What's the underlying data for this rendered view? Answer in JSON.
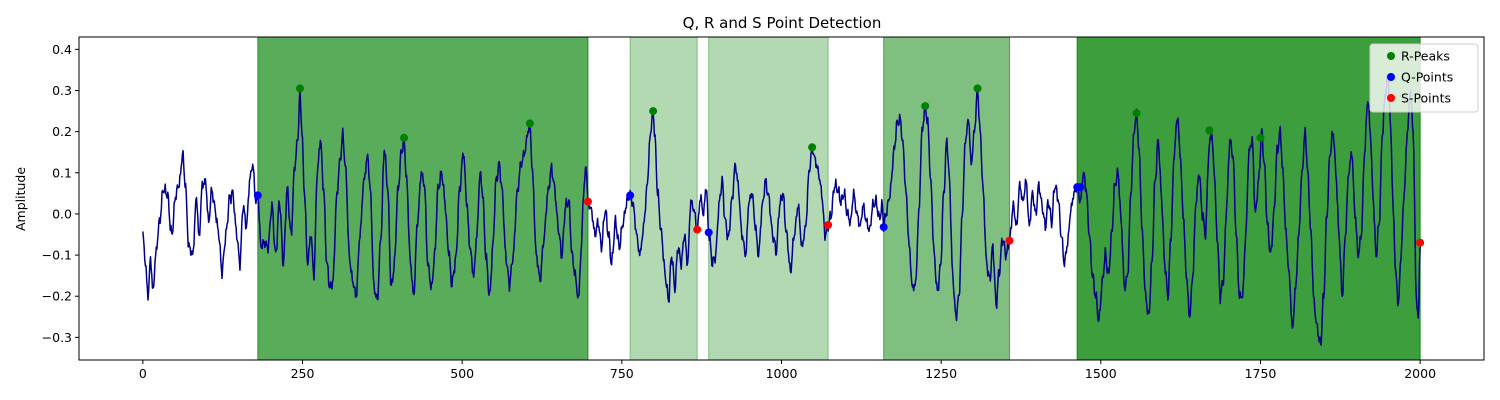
{
  "chart_data": {
    "type": "line",
    "title": "Q, R and S Point Detection",
    "xlabel": "",
    "ylabel": "Amplitude",
    "xlim": [
      -100,
      2100
    ],
    "ylim": [
      -0.355,
      0.43
    ],
    "x_ticks": [
      0,
      250,
      500,
      750,
      1000,
      1250,
      1500,
      1750,
      2000
    ],
    "y_ticks": [
      -0.3,
      -0.2,
      -0.1,
      0.0,
      0.1,
      0.2,
      0.3,
      0.4
    ],
    "y_tick_labels": [
      "−0.3",
      "−0.2",
      "−0.1",
      "0.0",
      "0.1",
      "0.2",
      "0.3",
      "0.4"
    ],
    "grid": false,
    "legend_position": "top-right",
    "colors": {
      "signal": "#00008b",
      "r_peaks": "#008000",
      "q_points": "#0000ff",
      "s_points": "#ff0000",
      "region": "#008000"
    },
    "regions": [
      {
        "start": 180,
        "end": 697,
        "alpha": 0.65
      },
      {
        "start": 763,
        "end": 868,
        "alpha": 0.3
      },
      {
        "start": 886,
        "end": 1073,
        "alpha": 0.3
      },
      {
        "start": 1160,
        "end": 1357,
        "alpha": 0.5
      },
      {
        "start": 1463,
        "end": 2000,
        "alpha": 0.76
      }
    ],
    "signal_envelope": [
      [
        0,
        -0.05
      ],
      [
        4,
        -0.12
      ],
      [
        8,
        -0.2
      ],
      [
        12,
        -0.11
      ],
      [
        16,
        -0.19
      ],
      [
        20,
        -0.1
      ],
      [
        26,
        -0.02
      ],
      [
        32,
        0.06
      ],
      [
        38,
        0.05
      ],
      [
        45,
        -0.05
      ],
      [
        52,
        0.05
      ],
      [
        58,
        0.08
      ],
      [
        62,
        0.15
      ],
      [
        66,
        0.08
      ],
      [
        72,
        -0.08
      ],
      [
        78,
        -0.1
      ],
      [
        84,
        0.04
      ],
      [
        88,
        -0.06
      ],
      [
        93,
        0.07
      ],
      [
        98,
        0.08
      ],
      [
        103,
        -0.02
      ],
      [
        108,
        0.06
      ],
      [
        112,
        0.02
      ],
      [
        118,
        -0.04
      ],
      [
        124,
        -0.14
      ],
      [
        130,
        -0.05
      ],
      [
        136,
        0.04
      ],
      [
        141,
        0.05
      ],
      [
        146,
        -0.04
      ],
      [
        152,
        -0.12
      ],
      [
        157,
        0.02
      ],
      [
        162,
        -0.03
      ],
      [
        168,
        0.09
      ],
      [
        172,
        0.12
      ],
      [
        177,
        0.03
      ],
      [
        180,
        0.045
      ],
      [
        185,
        -0.08
      ],
      [
        190,
        -0.07
      ],
      [
        196,
        -0.08
      ],
      [
        202,
        0.02
      ],
      [
        208,
        -0.1
      ],
      [
        214,
        0.03
      ],
      [
        220,
        -0.12
      ],
      [
        226,
        0.06
      ],
      [
        232,
        -0.05
      ],
      [
        238,
        0.12
      ],
      [
        243,
        0.19
      ],
      [
        246,
        0.3
      ],
      [
        249,
        0.2
      ],
      [
        253,
        0.05
      ],
      [
        258,
        -0.12
      ],
      [
        263,
        -0.05
      ],
      [
        268,
        -0.15
      ],
      [
        273,
        0.1
      ],
      [
        278,
        0.18
      ],
      [
        283,
        0.06
      ],
      [
        288,
        -0.12
      ],
      [
        293,
        -0.18
      ],
      [
        298,
        -0.16
      ],
      [
        303,
        0.03
      ],
      [
        308,
        0.12
      ],
      [
        313,
        0.19
      ],
      [
        318,
        0.1
      ],
      [
        323,
        -0.1
      ],
      [
        328,
        -0.16
      ],
      [
        334,
        -0.2
      ],
      [
        340,
        -0.05
      ],
      [
        346,
        0.08
      ],
      [
        352,
        0.14
      ],
      [
        356,
        0.06
      ],
      [
        362,
        -0.18
      ],
      [
        367,
        -0.21
      ],
      [
        373,
        -0.05
      ],
      [
        378,
        0.16
      ],
      [
        383,
        0.07
      ],
      [
        389,
        -0.18
      ],
      [
        394,
        -0.12
      ],
      [
        399,
        0.05
      ],
      [
        405,
        0.15
      ],
      [
        409,
        0.18
      ],
      [
        413,
        0.08
      ],
      [
        419,
        -0.12
      ],
      [
        424,
        -0.2
      ],
      [
        430,
        -0.02
      ],
      [
        436,
        0.1
      ],
      [
        441,
        0.07
      ],
      [
        446,
        -0.12
      ],
      [
        452,
        -0.18
      ],
      [
        457,
        -0.1
      ],
      [
        462,
        0.06
      ],
      [
        468,
        0.1
      ],
      [
        473,
        0.03
      ],
      [
        478,
        -0.08
      ],
      [
        484,
        -0.17
      ],
      [
        490,
        -0.11
      ],
      [
        496,
        0.06
      ],
      [
        502,
        0.15
      ],
      [
        507,
        0.03
      ],
      [
        512,
        -0.08
      ],
      [
        518,
        -0.15
      ],
      [
        523,
        -0.05
      ],
      [
        528,
        0.1
      ],
      [
        532,
        0.05
      ],
      [
        537,
        -0.1
      ],
      [
        543,
        -0.2
      ],
      [
        548,
        -0.08
      ],
      [
        553,
        0.08
      ],
      [
        558,
        0.12
      ],
      [
        563,
        0.05
      ],
      [
        568,
        -0.1
      ],
      [
        574,
        -0.17
      ],
      [
        580,
        -0.1
      ],
      [
        586,
        0.05
      ],
      [
        592,
        0.12
      ],
      [
        598,
        0.15
      ],
      [
        603,
        0.2
      ],
      [
        606,
        0.22
      ],
      [
        610,
        0.1
      ],
      [
        616,
        -0.1
      ],
      [
        622,
        -0.16
      ],
      [
        628,
        -0.06
      ],
      [
        634,
        0.05
      ],
      [
        640,
        0.11
      ],
      [
        645,
        0.06
      ],
      [
        650,
        -0.03
      ],
      [
        656,
        -0.1
      ],
      [
        662,
        0.02
      ],
      [
        667,
        0.03
      ],
      [
        672,
        -0.1
      ],
      [
        677,
        -0.15
      ],
      [
        682,
        -0.21
      ],
      [
        686,
        -0.1
      ],
      [
        690,
        0.05
      ],
      [
        694,
        0.12
      ],
      [
        697,
        0.03
      ],
      [
        702,
        0.01
      ],
      [
        708,
        -0.05
      ],
      [
        713,
        -0.02
      ],
      [
        718,
        -0.08
      ],
      [
        724,
        0.01
      ],
      [
        729,
        -0.05
      ],
      [
        734,
        -0.12
      ],
      [
        740,
        -0.02
      ],
      [
        746,
        -0.08
      ],
      [
        752,
        -0.02
      ],
      [
        758,
        0.03
      ],
      [
        763,
        0.045
      ],
      [
        768,
        0.02
      ],
      [
        773,
        -0.05
      ],
      [
        778,
        -0.1
      ],
      [
        782,
        -0.06
      ],
      [
        786,
        0.0
      ],
      [
        790,
        0.08
      ],
      [
        795,
        0.2
      ],
      [
        799,
        0.25
      ],
      [
        802,
        0.18
      ],
      [
        806,
        0.05
      ],
      [
        812,
        -0.05
      ],
      [
        818,
        -0.15
      ],
      [
        823,
        -0.21
      ],
      [
        828,
        -0.1
      ],
      [
        833,
        -0.18
      ],
      [
        838,
        -0.08
      ],
      [
        843,
        -0.12
      ],
      [
        848,
        -0.05
      ],
      [
        853,
        -0.12
      ],
      [
        858,
        0.03
      ],
      [
        863,
        0.01
      ],
      [
        868,
        -0.04
      ],
      [
        873,
        0.04
      ],
      [
        878,
        0.0
      ],
      [
        882,
        0.07
      ],
      [
        886,
        -0.045
      ],
      [
        892,
        -0.12
      ],
      [
        897,
        -0.1
      ],
      [
        902,
        0.02
      ],
      [
        907,
        0.08
      ],
      [
        912,
        -0.02
      ],
      [
        917,
        -0.06
      ],
      [
        922,
        0.03
      ],
      [
        928,
        0.12
      ],
      [
        932,
        0.07
      ],
      [
        938,
        -0.05
      ],
      [
        944,
        -0.1
      ],
      [
        949,
        0.03
      ],
      [
        954,
        0.05
      ],
      [
        959,
        -0.03
      ],
      [
        964,
        -0.1
      ],
      [
        970,
        0.02
      ],
      [
        975,
        0.08
      ],
      [
        980,
        0.04
      ],
      [
        986,
        -0.05
      ],
      [
        992,
        -0.09
      ],
      [
        997,
        0.02
      ],
      [
        1002,
        0.05
      ],
      [
        1008,
        -0.05
      ],
      [
        1014,
        -0.14
      ],
      [
        1020,
        -0.05
      ],
      [
        1026,
        0.02
      ],
      [
        1032,
        -0.08
      ],
      [
        1038,
        -0.03
      ],
      [
        1043,
        0.1
      ],
      [
        1048,
        0.16
      ],
      [
        1053,
        0.13
      ],
      [
        1058,
        0.1
      ],
      [
        1063,
        0.05
      ],
      [
        1068,
        -0.05
      ],
      [
        1073,
        -0.03
      ],
      [
        1078,
        0.0
      ],
      [
        1083,
        0.07
      ],
      [
        1088,
        0.06
      ],
      [
        1093,
        0.03
      ],
      [
        1098,
        0.05
      ],
      [
        1103,
        0.0
      ],
      [
        1108,
        -0.02
      ],
      [
        1113,
        0.05
      ],
      [
        1118,
        0.0
      ],
      [
        1123,
        -0.03
      ],
      [
        1128,
        0.02
      ],
      [
        1133,
        -0.02
      ],
      [
        1138,
        -0.04
      ],
      [
        1143,
        0.02
      ],
      [
        1148,
        0.03
      ],
      [
        1153,
        -0.01
      ],
      [
        1158,
        0.02
      ],
      [
        1160,
        -0.03
      ],
      [
        1165,
        0.01
      ],
      [
        1170,
        0.05
      ],
      [
        1176,
        0.15
      ],
      [
        1181,
        0.22
      ],
      [
        1186,
        0.23
      ],
      [
        1190,
        0.17
      ],
      [
        1195,
        0.05
      ],
      [
        1200,
        -0.08
      ],
      [
        1205,
        -0.18
      ],
      [
        1210,
        -0.17
      ],
      [
        1215,
        0.0
      ],
      [
        1220,
        0.2
      ],
      [
        1225,
        0.26
      ],
      [
        1229,
        0.22
      ],
      [
        1234,
        0.07
      ],
      [
        1239,
        -0.1
      ],
      [
        1244,
        -0.19
      ],
      [
        1249,
        -0.13
      ],
      [
        1254,
        0.05
      ],
      [
        1259,
        0.18
      ],
      [
        1263,
        0.08
      ],
      [
        1268,
        -0.15
      ],
      [
        1273,
        -0.25
      ],
      [
        1278,
        -0.2
      ],
      [
        1283,
        0.0
      ],
      [
        1288,
        0.18
      ],
      [
        1293,
        0.23
      ],
      [
        1297,
        0.12
      ],
      [
        1302,
        0.2
      ],
      [
        1307,
        0.3
      ],
      [
        1311,
        0.2
      ],
      [
        1316,
        0.05
      ],
      [
        1321,
        -0.12
      ],
      [
        1326,
        -0.16
      ],
      [
        1331,
        -0.08
      ],
      [
        1336,
        -0.22
      ],
      [
        1341,
        -0.14
      ],
      [
        1346,
        -0.06
      ],
      [
        1352,
        -0.1
      ],
      [
        1357,
        -0.065
      ],
      [
        1363,
        0.02
      ],
      [
        1368,
        -0.03
      ],
      [
        1373,
        0.07
      ],
      [
        1378,
        0.03
      ],
      [
        1383,
        0.08
      ],
      [
        1388,
        -0.03
      ],
      [
        1393,
        0.05
      ],
      [
        1398,
        0.0
      ],
      [
        1403,
        0.07
      ],
      [
        1408,
        0.02
      ],
      [
        1413,
        -0.03
      ],
      [
        1418,
        0.03
      ],
      [
        1423,
        -0.02
      ],
      [
        1428,
        0.07
      ],
      [
        1433,
        0.04
      ],
      [
        1438,
        -0.05
      ],
      [
        1443,
        -0.12
      ],
      [
        1448,
        -0.07
      ],
      [
        1453,
        0.01
      ],
      [
        1458,
        0.05
      ],
      [
        1463,
        0.065
      ],
      [
        1468,
        0.03
      ],
      [
        1473,
        0.1
      ],
      [
        1477,
        0.06
      ],
      [
        1482,
        -0.05
      ],
      [
        1487,
        -0.15
      ],
      [
        1492,
        -0.2
      ],
      [
        1497,
        -0.26
      ],
      [
        1502,
        -0.17
      ],
      [
        1507,
        -0.1
      ],
      [
        1512,
        -0.15
      ],
      [
        1517,
        -0.05
      ],
      [
        1522,
        0.07
      ],
      [
        1527,
        0.1
      ],
      [
        1532,
        -0.02
      ],
      [
        1537,
        -0.18
      ],
      [
        1542,
        -0.15
      ],
      [
        1547,
        0.05
      ],
      [
        1552,
        0.2
      ],
      [
        1556,
        0.245
      ],
      [
        1560,
        0.15
      ],
      [
        1565,
        -0.05
      ],
      [
        1570,
        -0.2
      ],
      [
        1575,
        -0.25
      ],
      [
        1580,
        -0.12
      ],
      [
        1585,
        0.08
      ],
      [
        1590,
        0.18
      ],
      [
        1595,
        0.04
      ],
      [
        1600,
        -0.12
      ],
      [
        1605,
        -0.2
      ],
      [
        1610,
        -0.05
      ],
      [
        1615,
        0.15
      ],
      [
        1620,
        0.24
      ],
      [
        1624,
        0.15
      ],
      [
        1629,
        0.0
      ],
      [
        1634,
        -0.15
      ],
      [
        1639,
        -0.25
      ],
      [
        1644,
        -0.15
      ],
      [
        1649,
        0.03
      ],
      [
        1654,
        0.1
      ],
      [
        1659,
        0.0
      ],
      [
        1664,
        -0.05
      ],
      [
        1669,
        0.15
      ],
      [
        1673,
        0.2
      ],
      [
        1677,
        0.12
      ],
      [
        1682,
        -0.05
      ],
      [
        1687,
        -0.2
      ],
      [
        1692,
        -0.16
      ],
      [
        1697,
        0.02
      ],
      [
        1702,
        0.18
      ],
      [
        1707,
        0.14
      ],
      [
        1712,
        -0.05
      ],
      [
        1717,
        -0.2
      ],
      [
        1722,
        -0.2
      ],
      [
        1727,
        -0.05
      ],
      [
        1732,
        0.15
      ],
      [
        1737,
        0.18
      ],
      [
        1742,
        0.0
      ],
      [
        1747,
        0.08
      ],
      [
        1752,
        0.2
      ],
      [
        1756,
        0.12
      ],
      [
        1761,
        -0.03
      ],
      [
        1766,
        -0.1
      ],
      [
        1771,
        0.0
      ],
      [
        1776,
        0.15
      ],
      [
        1781,
        0.2
      ],
      [
        1785,
        0.1
      ],
      [
        1790,
        -0.05
      ],
      [
        1795,
        -0.15
      ],
      [
        1800,
        -0.28
      ],
      [
        1805,
        -0.18
      ],
      [
        1810,
        -0.05
      ],
      [
        1815,
        0.1
      ],
      [
        1820,
        0.2
      ],
      [
        1824,
        0.1
      ],
      [
        1829,
        -0.05
      ],
      [
        1834,
        -0.22
      ],
      [
        1839,
        -0.28
      ],
      [
        1844,
        -0.32
      ],
      [
        1849,
        -0.2
      ],
      [
        1854,
        0.0
      ],
      [
        1859,
        0.15
      ],
      [
        1864,
        0.2
      ],
      [
        1868,
        0.1
      ],
      [
        1873,
        -0.05
      ],
      [
        1878,
        -0.2
      ],
      [
        1883,
        -0.05
      ],
      [
        1888,
        0.1
      ],
      [
        1893,
        0.15
      ],
      [
        1898,
        0.0
      ],
      [
        1903,
        -0.1
      ],
      [
        1908,
        -0.05
      ],
      [
        1913,
        0.15
      ],
      [
        1918,
        0.28
      ],
      [
        1922,
        0.2
      ],
      [
        1926,
        0.05
      ],
      [
        1931,
        -0.1
      ],
      [
        1936,
        -0.02
      ],
      [
        1941,
        0.2
      ],
      [
        1946,
        0.3
      ],
      [
        1950,
        0.34
      ],
      [
        1954,
        0.2
      ],
      [
        1958,
        0.0
      ],
      [
        1962,
        -0.15
      ],
      [
        1966,
        -0.22
      ],
      [
        1970,
        -0.1
      ],
      [
        1975,
        0.05
      ],
      [
        1980,
        0.2
      ],
      [
        1985,
        0.3
      ],
      [
        1989,
        0.2
      ],
      [
        1994,
        -0.2
      ],
      [
        1997,
        -0.26
      ],
      [
        2000,
        -0.07
      ]
    ],
    "r_peaks": {
      "name": "R-Peaks",
      "x": [
        246,
        409,
        606,
        799,
        1048,
        1225,
        1307,
        1556,
        1670,
        1750
      ],
      "y": [
        0.305,
        0.185,
        0.22,
        0.25,
        0.162,
        0.262,
        0.305,
        0.245,
        0.203,
        0.185
      ]
    },
    "q_points": {
      "name": "Q-Points",
      "x": [
        180,
        763,
        886,
        1160,
        1463,
        1468
      ],
      "y": [
        0.045,
        0.045,
        -0.045,
        -0.032,
        0.065,
        0.065
      ]
    },
    "s_points": {
      "name": "S-Points",
      "x": [
        697,
        868,
        1073,
        1357,
        2000
      ],
      "y": [
        0.03,
        -0.038,
        -0.027,
        -0.065,
        -0.07
      ]
    }
  }
}
